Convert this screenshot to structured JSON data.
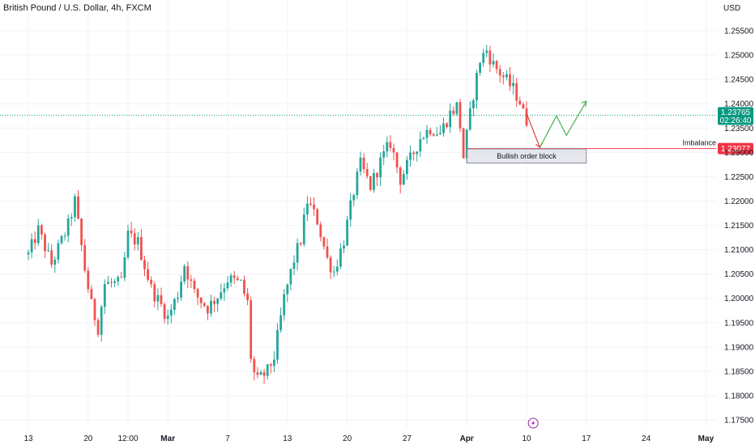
{
  "chart_data": {
    "type": "candlestick",
    "title": "British Pound / U.S. Dollar, 4h, FXCM",
    "currency": "USD",
    "ylim": [
      1.1725,
      1.2575
    ],
    "y_ticks": [
      "1.25500",
      "1.25000",
      "1.24500",
      "1.24000",
      "1.23500",
      "1.23000",
      "1.22500",
      "1.22000",
      "1.21500",
      "1.21000",
      "1.20500",
      "1.20000",
      "1.19500",
      "1.19000",
      "1.18500",
      "1.18000",
      "1.17500"
    ],
    "x_ticks": [
      {
        "label": "13",
        "bar": 0
      },
      {
        "label": "20",
        "bar": 18
      },
      {
        "label": "12:00",
        "bar": 30
      },
      {
        "label": "Mar",
        "bar": 42
      },
      {
        "label": "7",
        "bar": 60
      },
      {
        "label": "13",
        "bar": 78
      },
      {
        "label": "20",
        "bar": 96
      },
      {
        "label": "27",
        "bar": 114
      },
      {
        "label": "Apr",
        "bar": 132
      },
      {
        "label": "10",
        "bar": 150
      },
      {
        "label": "17",
        "bar": 168
      },
      {
        "label": "24",
        "bar": 186
      },
      {
        "label": "May",
        "bar": 204
      }
    ],
    "waypoints": [
      [
        0,
        1.209
      ],
      [
        3,
        1.214
      ],
      [
        7,
        1.207
      ],
      [
        12,
        1.215
      ],
      [
        14,
        1.22
      ],
      [
        17,
        1.206
      ],
      [
        19,
        1.1985
      ],
      [
        21,
        1.194
      ],
      [
        23,
        1.203
      ],
      [
        28,
        1.203
      ],
      [
        30,
        1.213
      ],
      [
        33,
        1.2115
      ],
      [
        37,
        1.202
      ],
      [
        40,
        1.1985
      ],
      [
        42,
        1.196
      ],
      [
        45,
        1.201
      ],
      [
        47,
        1.207
      ],
      [
        50,
        1.201
      ],
      [
        54,
        1.198
      ],
      [
        57,
        1.2005
      ],
      [
        60,
        1.204
      ],
      [
        64,
        1.203
      ],
      [
        66,
        1.199
      ],
      [
        67,
        1.188
      ],
      [
        68,
        1.1845
      ],
      [
        69,
        1.183
      ],
      [
        72,
        1.185
      ],
      [
        74,
        1.188
      ],
      [
        77,
        1.2
      ],
      [
        80,
        1.208
      ],
      [
        82,
        1.212
      ],
      [
        84,
        1.22
      ],
      [
        87,
        1.216
      ],
      [
        90,
        1.208
      ],
      [
        92,
        1.2055
      ],
      [
        95,
        1.212
      ],
      [
        98,
        1.222
      ],
      [
        100,
        1.2275
      ],
      [
        103,
        1.223
      ],
      [
        106,
        1.228
      ],
      [
        109,
        1.232
      ],
      [
        112,
        1.2245
      ],
      [
        115,
        1.2285
      ],
      [
        118,
        1.233
      ],
      [
        121,
        1.235
      ],
      [
        124,
        1.234
      ],
      [
        127,
        1.238
      ],
      [
        129,
        1.2395
      ],
      [
        130,
        1.2355
      ],
      [
        131,
        1.229
      ],
      [
        132,
        1.2335
      ],
      [
        134,
        1.242
      ],
      [
        136,
        1.249
      ],
      [
        138,
        1.251
      ],
      [
        140,
        1.248
      ],
      [
        143,
        1.2455
      ],
      [
        146,
        1.243
      ],
      [
        148,
        1.2405
      ],
      [
        149,
        1.238
      ],
      [
        150,
        1.2355
      ]
    ],
    "current_price": "1.23765",
    "countdown": "02:26:40",
    "imbalance_price": "1.23077",
    "current_price_value": 1.23765,
    "imbalance_value": 1.23077,
    "colors": {
      "up": "#26a69a",
      "down": "#ef5350",
      "current_badge": "#089981",
      "imbalance_badge": "#f23645",
      "arrow_up": "#4caf50",
      "arrow_down": "#e53935",
      "event_icon": "#9c27b0"
    },
    "annotations": {
      "order_block_label": "Bullish order block",
      "order_block_range": [
        1.2278,
        1.2307
      ],
      "order_block_bars": [
        132,
        168
      ],
      "imbalance_label": "Imbalance",
      "projection_down": [
        [
          150,
          1.238
        ],
        [
          154,
          1.231
        ]
      ],
      "projection_up": [
        [
          154,
          1.231
        ],
        [
          159,
          1.2375
        ],
        [
          162,
          1.2335
        ],
        [
          168,
          1.2405
        ]
      ]
    },
    "event_icon": "lightning-icon",
    "event_bar": 152
  }
}
